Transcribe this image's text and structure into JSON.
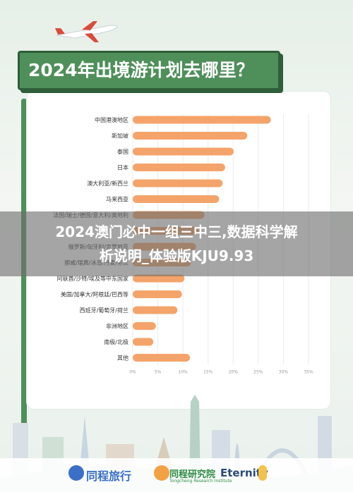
{
  "title": "2024年出境游计划去哪里？",
  "banner": {
    "line1": "2024澳门必中一组三中三,数据科学解",
    "line2": "析说明_体验版KJU9.93"
  },
  "footer": {
    "logo1": "同程旅行",
    "logo2": "同程研究院",
    "logo2_sub": "Tongcheng Research Institute",
    "logo3": "Eternity"
  },
  "colors": {
    "bar": "#f4a46a",
    "title_bg": "#4f8f5a",
    "banner": "#6e6e6e"
  },
  "chart_data": {
    "type": "bar",
    "orientation": "horizontal",
    "categories": [
      "中国港澳地区",
      "新加坡",
      "泰国",
      "日本",
      "澳大利亚/新西兰",
      "马来西亚",
      "法国/瑞士/德国/意大利/奥地利",
      "",
      "俄罗斯/匈牙利/克罗地亚",
      "挪威/瑞典/冰岛/丹麦/芬兰",
      "阿联酋/沙特/埃及等中东国家",
      "美国/加拿大/阿根廷/巴西等",
      "西班牙/葡萄牙/荷兰",
      "非洲地区",
      "南极/北极",
      "其他"
    ],
    "values": [
      27.5,
      22.8,
      20.1,
      18.4,
      17.9,
      17.2,
      14.3,
      13.2,
      12.6,
      11.6,
      10.3,
      9.8,
      8.9,
      4.6,
      4.1,
      11.4
    ],
    "xlim": [
      0,
      35
    ],
    "xticks": [
      "0%",
      "5%",
      "10%",
      "15%",
      "20%",
      "25%",
      "30%",
      "35%"
    ],
    "title": "2024年出境游计划去哪里？"
  }
}
